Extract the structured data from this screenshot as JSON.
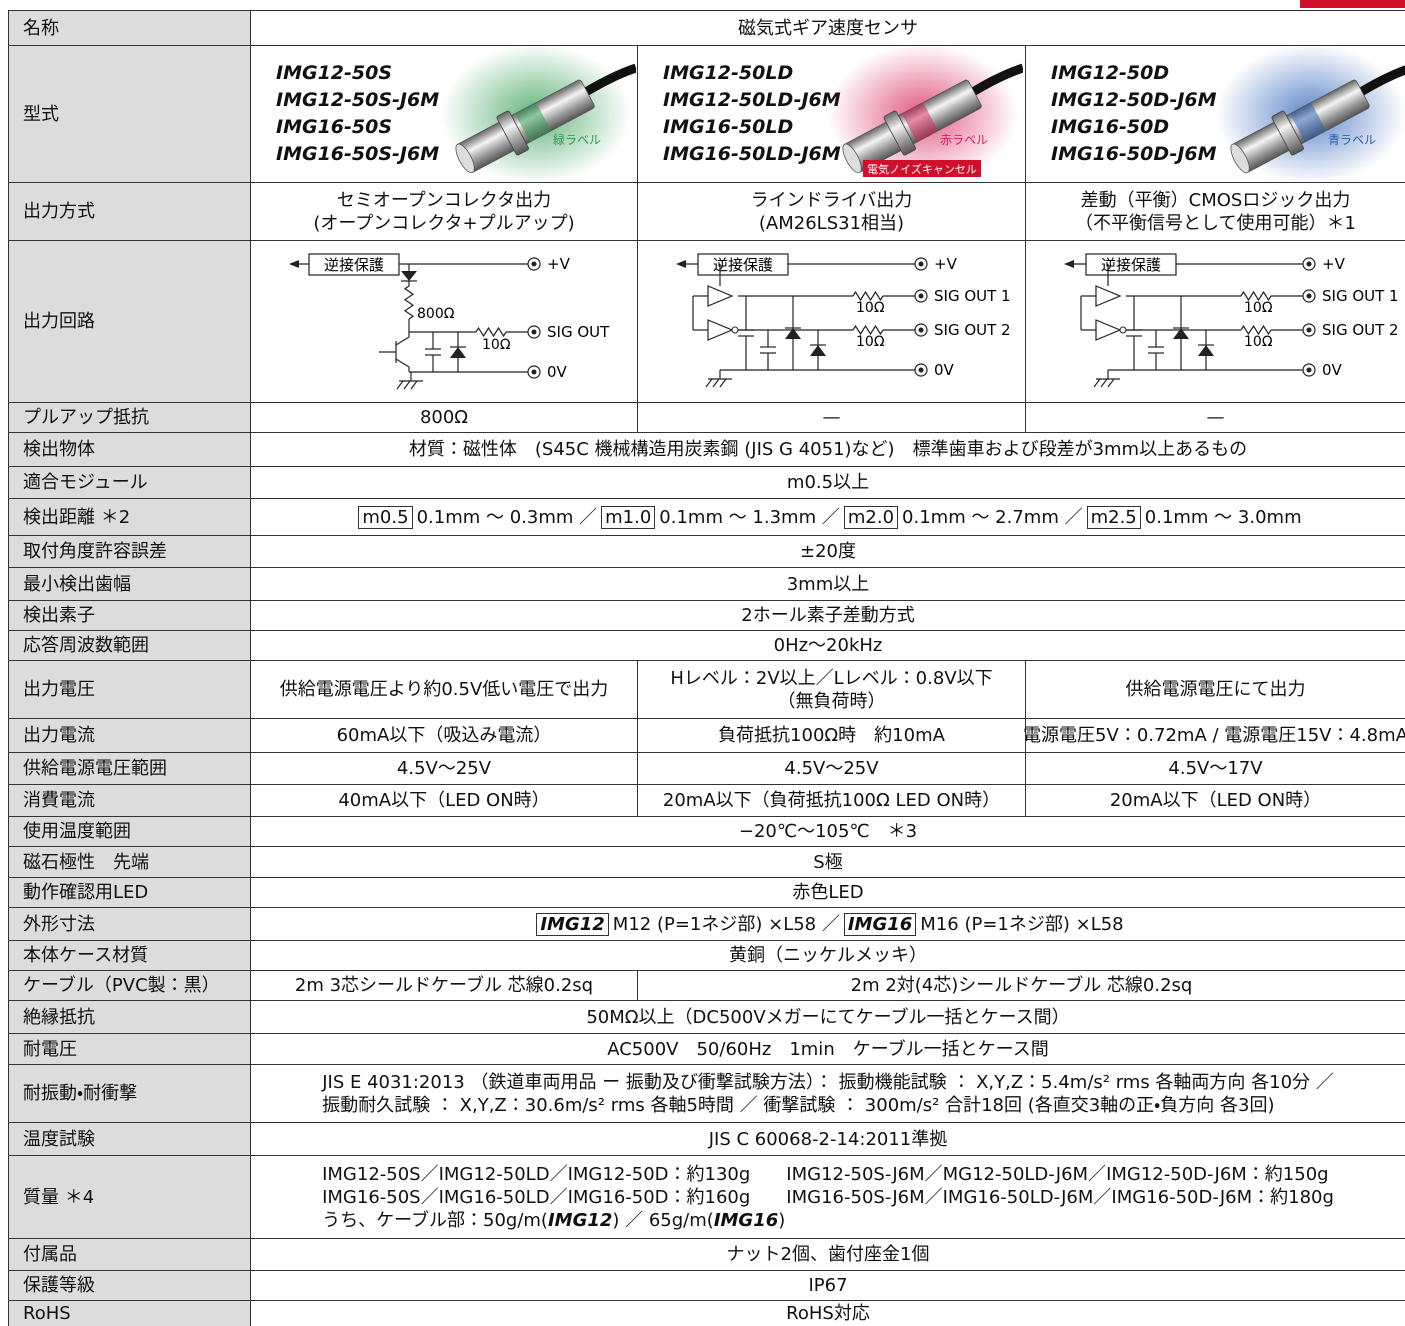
{
  "table": {
    "rows": [
      {
        "label": "名称",
        "cells": [
          "磁気式ギア速度センサ"
        ]
      },
      {
        "label": "型式",
        "models": [
          {
            "names": [
              "IMG12-50S",
              "IMG12-50S-J6M",
              "IMG16-50S",
              "IMG16-50S-J6M"
            ],
            "tag": "緑ラベル",
            "color": "#2e9a4f"
          },
          {
            "names": [
              "IMG12-50LD",
              "IMG12-50LD-J6M",
              "IMG16-50LD",
              "IMG16-50LD-J6M"
            ],
            "tag": "赤ラベル",
            "badge": "電気ノイズキャンセル",
            "color": "#d8205a"
          },
          {
            "names": [
              "IMG12-50D",
              "IMG12-50D-J6M",
              "IMG16-50D",
              "IMG16-50D-J6M"
            ],
            "tag": "青ラベル",
            "color": "#2a5fb8"
          }
        ]
      },
      {
        "label": "出力方式",
        "cells": [
          [
            "セミオープンコレクタ出力",
            "(オープンコレクタ+プルアップ)"
          ],
          [
            "ラインドライバ出力",
            "(AM26LS31相当)"
          ],
          [
            "差動（平衡）CMOSロジック出力",
            "（不平衡信号として使用可能）＊1"
          ]
        ]
      },
      {
        "label": "出力回路",
        "circuits": [
          {
            "protect": "逆接保護",
            "vplus": "+V",
            "pullup": "800Ω",
            "outputs": [
              {
                "label": "SIG OUT",
                "resistor": "10Ω"
              }
            ],
            "ground": "0V"
          },
          {
            "protect": "逆接保護",
            "vplus": "+V",
            "outputs": [
              {
                "label": "SIG OUT 1",
                "resistor": "10Ω"
              },
              {
                "label": "SIG OUT 2",
                "resistor": "10Ω"
              }
            ],
            "ground": "0V"
          },
          {
            "protect": "逆接保護",
            "vplus": "+V",
            "outputs": [
              {
                "label": "SIG OUT 1",
                "resistor": "10Ω"
              },
              {
                "label": "SIG OUT 2",
                "resistor": "10Ω"
              }
            ],
            "ground": "0V"
          }
        ]
      },
      {
        "label": "プルアップ抵抗",
        "cells": [
          "800Ω",
          "—",
          "—"
        ]
      },
      {
        "label": "検出物体",
        "cells": [
          "材質：磁性体　(S45C 機械構造用炭素鋼 (JIS G 4051)など)　標準歯車および段差が3mm以上あるもの"
        ]
      },
      {
        "label": "適合モジュール",
        "cells": [
          "m0.5以上"
        ]
      },
      {
        "label": "検出距離 ＊2",
        "cells": [
          [
            [
              {
                "text": "m0.5",
                "boxed": true
              },
              "0.1mm ～ 0.3mm ／",
              {
                "text": "m1.0",
                "boxed": true
              },
              "0.1mm ～ 1.3mm ／",
              {
                "text": "m2.0",
                "boxed": true
              },
              "0.1mm ～ 2.7mm ／",
              {
                "text": "m2.5",
                "boxed": true
              },
              "0.1mm ～ 3.0mm"
            ]
          ]
        ]
      },
      {
        "label": "取付角度許容誤差",
        "cells": [
          "±20度"
        ]
      },
      {
        "label": "最小検出歯幅",
        "cells": [
          "3mm以上"
        ]
      },
      {
        "label": "検出素子",
        "cells": [
          "2ホール素子差動方式"
        ]
      },
      {
        "label": "応答周波数範囲",
        "cells": [
          "0Hz～20kHz"
        ]
      },
      {
        "label": "出力電圧",
        "cells": [
          "供給電源電圧より約0.5V低い電圧で出力",
          [
            "Hレベル：2V以上／Lレベル：0.8V以下",
            "（無負荷時）"
          ],
          "供給電源電圧にて出力"
        ]
      },
      {
        "label": "出力電流",
        "cells": [
          "60mA以下（吸込み電流）",
          "負荷抵抗100Ω時　約10mA",
          "電源電圧5V：0.72mA / 電源電圧15V：4.8mA"
        ]
      },
      {
        "label": "供給電源電圧範囲",
        "cells": [
          "4.5V～25V",
          "4.5V～25V",
          "4.5V～17V"
        ]
      },
      {
        "label": "消費電流",
        "cells": [
          "40mA以下（LED ON時）",
          "20mA以下（負荷抵抗100Ω LED ON時）",
          "20mA以下（LED ON時）"
        ]
      },
      {
        "label": "使用温度範囲",
        "cells": [
          "−20℃～105℃　＊3"
        ]
      },
      {
        "label": "磁石極性　先端",
        "cells": [
          "S極"
        ]
      },
      {
        "label": "動作確認用LED",
        "cells": [
          "赤色LED"
        ]
      },
      {
        "label": "外形寸法",
        "cells": [
          [
            [
              {
                "text": "IMG12",
                "boxed": true,
                "em": true
              },
              "M12 (P=1ネジ部) ×L58 ／",
              {
                "text": "IMG16",
                "boxed": true,
                "em": true
              },
              "M16 (P=1ネジ部) ×L58"
            ]
          ]
        ]
      },
      {
        "label": "本体ケース材質",
        "cells": [
          "黄銅（ニッケルメッキ）"
        ]
      },
      {
        "label": "ケーブル（PVC製：黒）",
        "cells": [
          "2m 3芯シールドケーブル 芯線0.2sq",
          "2m 2対(4芯)シールドケーブル 芯線0.2sq"
        ]
      },
      {
        "label": "絶縁抵抗",
        "cells": [
          "50MΩ以上（DC500Vメガーにてケーブル一括とケース間）"
        ]
      },
      {
        "label": "耐電圧",
        "cells": [
          "AC500V　50/60Hz　1min　ケーブル一括とケース間"
        ]
      },
      {
        "label": "耐振動・耐衝撃",
        "cells": [
          [
            "JIS E 4031:2013 （鉄道車両用品 ー 振動及び衝撃試験方法）： 振動機能試験 ： X,Y,Z：5.4m/s² rms 各軸両方向 各10分 ／",
            "振動耐久試験 ： X,Y,Z：30.6m/s² rms 各軸5時間 ／ 衝撃試験 ： 300m/s² 合計18回 (各直交3軸の正・負方向 各3回)"
          ]
        ]
      },
      {
        "label": "温度試験",
        "cells": [
          "JIS C 60068-2-14:2011準拠"
        ]
      },
      {
        "label": "質量 ＊4",
        "cells": [
          [
            "IMG12-50S／IMG12-50LD／IMG12-50D：約130g　　IMG12-50S-J6M／MG12-50LD-J6M／IMG12-50D-J6M：約150g",
            "IMG16-50S／IMG16-50LD／IMG16-50D：約160g　　IMG16-50S-J6M／IMG16-50LD-J6M／IMG16-50D-J6M：約180g",
            [
              "うち、ケーブル部：50g/m(",
              {
                "text": "IMG12",
                "em": true
              },
              ") ／ 65g/m(",
              {
                "text": "IMG16",
                "em": true
              },
              ")"
            ]
          ]
        ]
      },
      {
        "label": "付属品",
        "cells": [
          "ナット2個、歯付座金1個"
        ]
      },
      {
        "label": "保護等級",
        "cells": [
          "IP67"
        ]
      },
      {
        "label": "RoHS",
        "cells": [
          "RoHS対応"
        ]
      }
    ]
  }
}
